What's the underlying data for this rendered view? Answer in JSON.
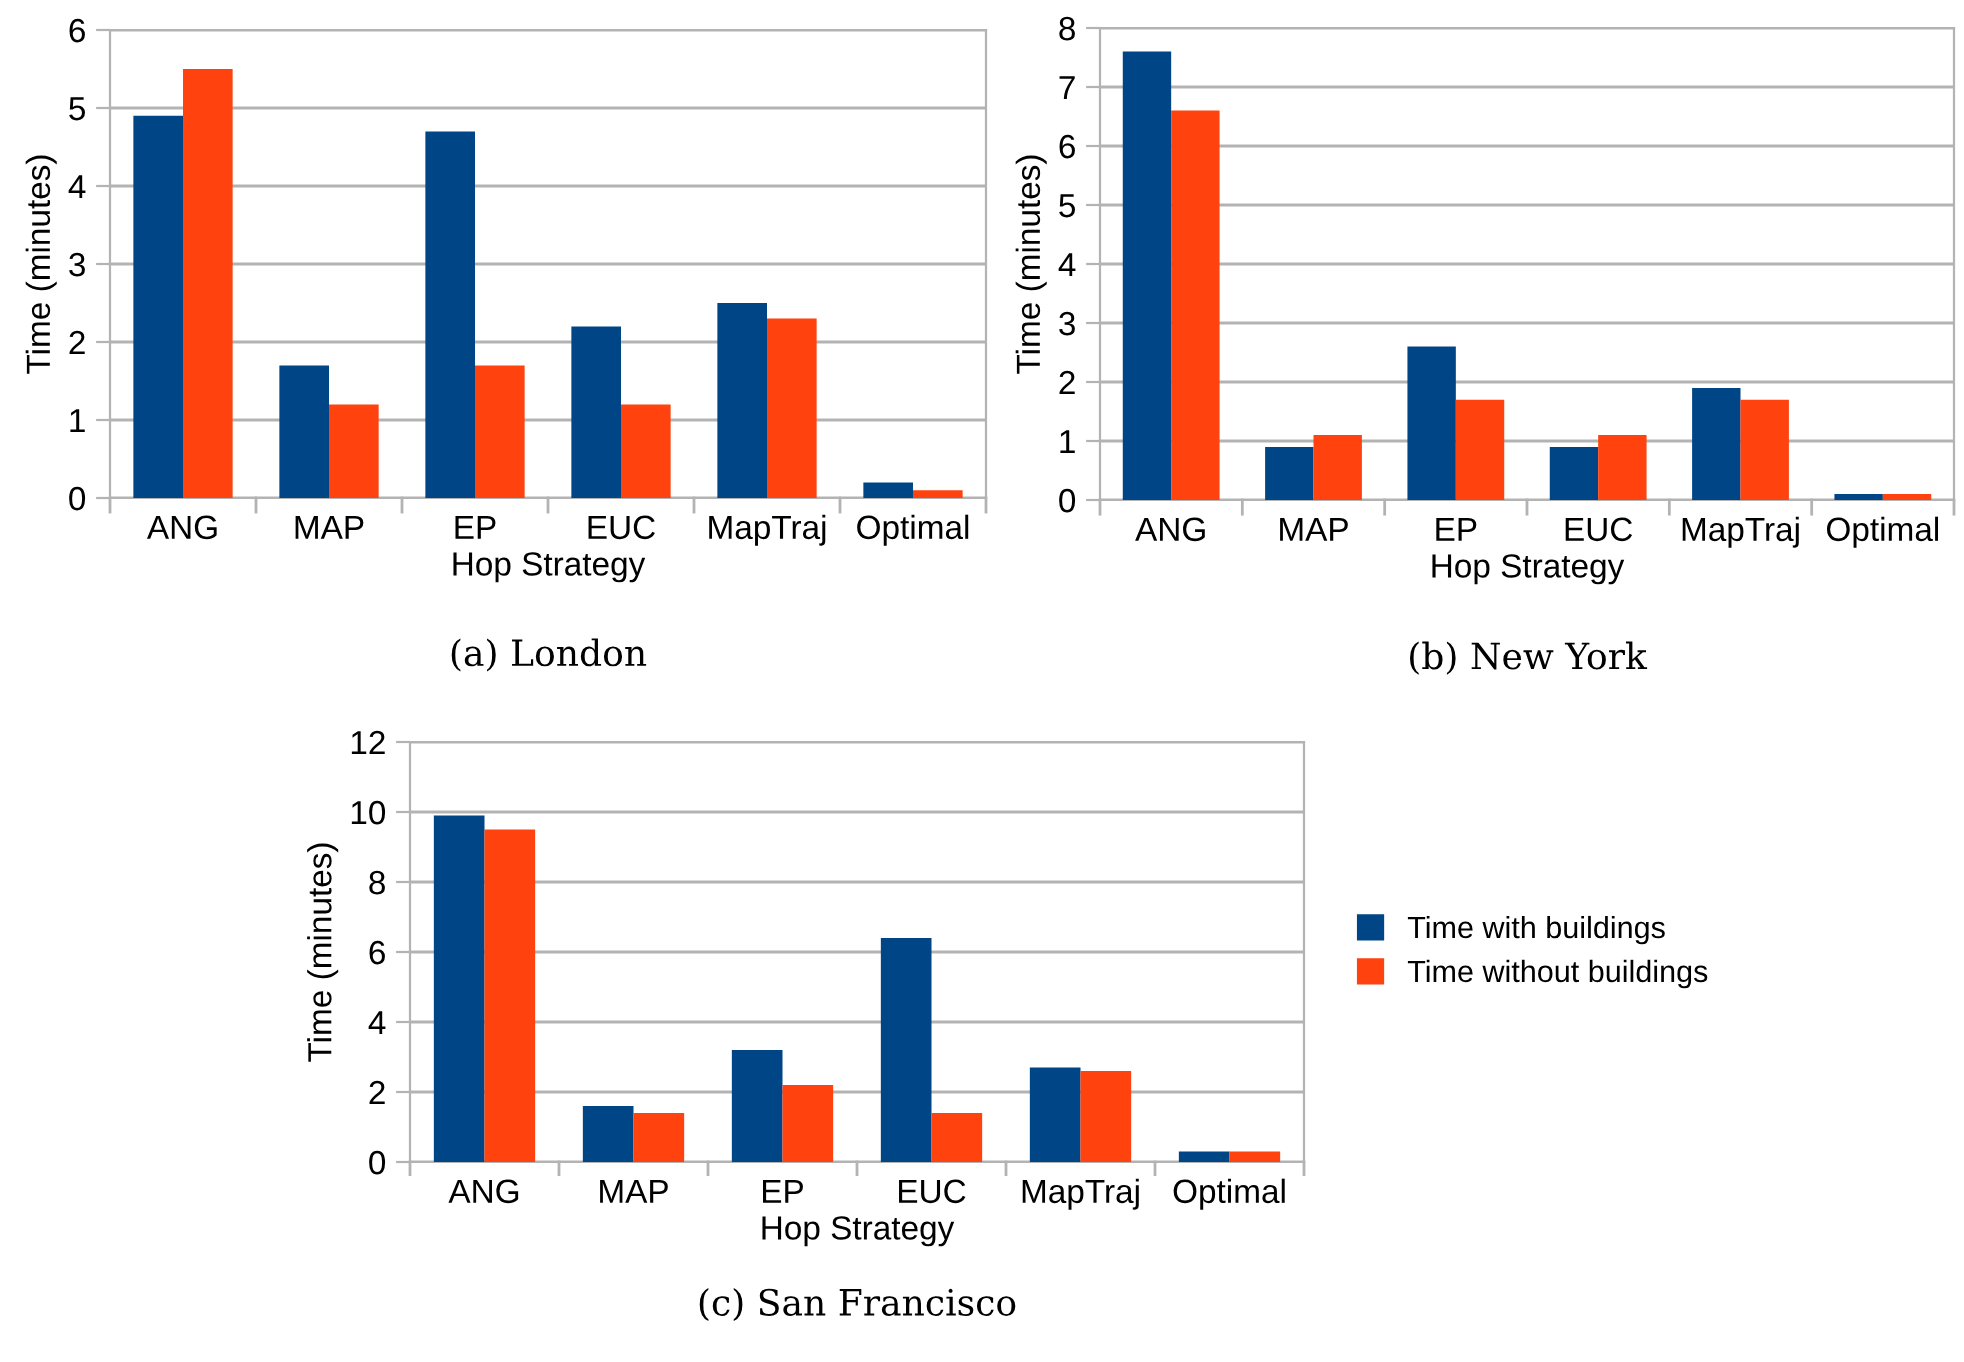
{
  "chart_data": [
    {
      "type": "bar",
      "xlabel": "Hop Strategy",
      "ylabel": "Time (minutes)",
      "categories": [
        "ANG",
        "MAP",
        "EP",
        "EUC",
        "MapTraj",
        "Optimal"
      ],
      "series": [
        {
          "color": "#004586",
          "values": [
            4.9,
            1.7,
            4.7,
            2.2,
            2.5,
            0.2
          ]
        },
        {
          "color": "#ff420e",
          "values": [
            5.5,
            1.2,
            1.7,
            1.2,
            2.3,
            0.1
          ]
        }
      ],
      "ylim": [
        0,
        6
      ],
      "yticks": [
        0,
        1,
        2,
        3,
        4,
        5,
        6
      ],
      "grid": "y",
      "legend": false,
      "annotations": [
        "(a) London"
      ]
    },
    {
      "type": "bar",
      "xlabel": "Hop Strategy",
      "ylabel": "Time (minutes)",
      "categories": [
        "ANG",
        "MAP",
        "EP",
        "EUC",
        "MapTraj",
        "Optimal"
      ],
      "series": [
        {
          "color": "#004586",
          "values": [
            7.6,
            0.9,
            2.6,
            0.9,
            1.9,
            0.1
          ]
        },
        {
          "color": "#ff420e",
          "values": [
            6.6,
            1.1,
            1.7,
            1.1,
            1.7,
            0.1
          ]
        }
      ],
      "ylim": [
        0,
        8
      ],
      "yticks": [
        0,
        1,
        2,
        3,
        4,
        5,
        6,
        7,
        8
      ],
      "grid": "y",
      "legend": false,
      "annotations": [
        "(b) New York"
      ]
    },
    {
      "type": "bar",
      "xlabel": "Hop Strategy",
      "ylabel": "Time (minutes)",
      "categories": [
        "ANG",
        "MAP",
        "EP",
        "EUC",
        "MapTraj",
        "Optimal"
      ],
      "series": [
        {
          "name": "Time with buildings",
          "color": "#004586",
          "values": [
            9.9,
            1.6,
            3.2,
            6.4,
            2.7,
            0.3
          ]
        },
        {
          "name": "Time without buildings",
          "color": "#ff420e",
          "values": [
            9.5,
            1.4,
            2.2,
            1.4,
            2.6,
            0.3
          ]
        }
      ],
      "ylim": [
        0,
        12
      ],
      "yticks": [
        0,
        2,
        4,
        6,
        8,
        10,
        12
      ],
      "grid": "y",
      "legend": "right",
      "annotations": [
        "(c) San Francisco"
      ]
    }
  ]
}
